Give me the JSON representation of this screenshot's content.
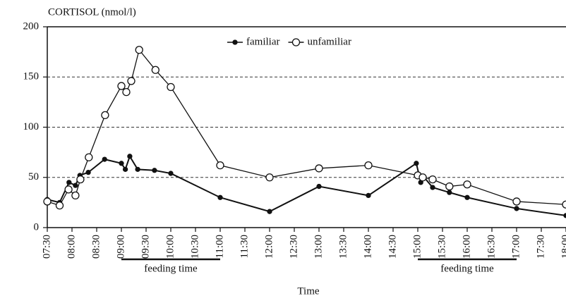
{
  "chart_data": {
    "type": "line",
    "title": "CORTISOL (nmol/l)",
    "xlabel": "Time",
    "xlim": [
      7.5,
      18
    ],
    "ylim": [
      0,
      200
    ],
    "yticks": [
      0,
      50,
      100,
      150,
      200
    ],
    "xticks": [
      {
        "value": 7.5,
        "label": "07:30"
      },
      {
        "value": 8,
        "label": "08:00"
      },
      {
        "value": 8.5,
        "label": "08:30"
      },
      {
        "value": 9,
        "label": "09:00"
      },
      {
        "value": 9.5,
        "label": "09:30"
      },
      {
        "value": 10,
        "label": "10:00"
      },
      {
        "value": 10.5,
        "label": "10:30"
      },
      {
        "value": 11,
        "label": "11:00"
      },
      {
        "value": 11.5,
        "label": "11:30"
      },
      {
        "value": 12,
        "label": "12:00"
      },
      {
        "value": 12.5,
        "label": "12:30"
      },
      {
        "value": 13,
        "label": "13:00"
      },
      {
        "value": 13.5,
        "label": "13:30"
      },
      {
        "value": 14,
        "label": "14:00"
      },
      {
        "value": 14.5,
        "label": "14:30"
      },
      {
        "value": 15,
        "label": "15:00"
      },
      {
        "value": 15.5,
        "label": "15:30"
      },
      {
        "value": 16,
        "label": "16:00"
      },
      {
        "value": 16.5,
        "label": "16:30"
      },
      {
        "value": 17,
        "label": "17:00"
      },
      {
        "value": 17.5,
        "label": "17:30"
      },
      {
        "value": 18,
        "label": "18:00"
      }
    ],
    "grid": true,
    "legend": "top",
    "series": [
      {
        "name": "familiar",
        "color": "#111111",
        "marker": "filled",
        "x": [
          7.5,
          7.75,
          7.94,
          8.07,
          8.16,
          8.33,
          8.66,
          9.0,
          9.08,
          9.17,
          9.33,
          9.67,
          10.0,
          11.0,
          12.0,
          13.0,
          14.0,
          14.97,
          15.06,
          15.13,
          15.3,
          15.64,
          16.0,
          17.0,
          18.0
        ],
        "values": [
          28,
          25,
          45,
          42,
          52,
          55,
          68,
          64,
          58,
          71,
          58,
          57,
          54,
          30,
          16,
          41,
          32,
          64,
          45,
          50,
          40,
          35,
          30,
          19,
          12
        ]
      },
      {
        "name": "unfamiliar",
        "color": "#111111",
        "marker": "open",
        "x": [
          7.5,
          7.75,
          7.93,
          8.07,
          8.17,
          8.34,
          8.67,
          9.0,
          9.1,
          9.2,
          9.36,
          9.69,
          10.0,
          11.0,
          12.0,
          13.0,
          14.0,
          15.0,
          15.1,
          15.3,
          15.64,
          16.0,
          17.0,
          18.0
        ],
        "values": [
          26,
          22,
          38,
          32,
          48,
          70,
          112,
          141,
          135,
          146,
          177,
          157,
          140,
          62,
          50,
          59,
          62,
          52,
          50,
          48,
          41,
          43,
          26,
          23
        ]
      }
    ],
    "annotations": [
      {
        "text": "feeding time",
        "x": [
          9,
          11
        ]
      },
      {
        "text": "feeding time",
        "x": [
          15,
          17
        ]
      }
    ]
  }
}
